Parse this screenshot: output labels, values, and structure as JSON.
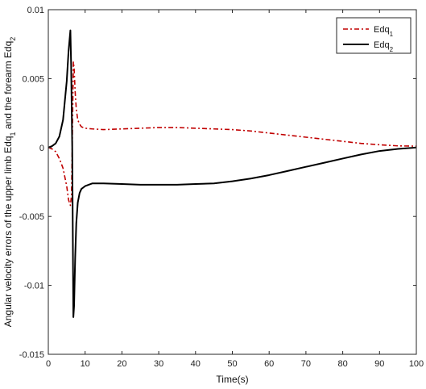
{
  "chart_data": {
    "type": "line",
    "title": "",
    "xlabel": "Time(s)",
    "ylabel_parts": [
      "Angular velocity errors of the upper limb Edq",
      "1",
      " and the forearm Edq",
      "2"
    ],
    "xlim": [
      0,
      100
    ],
    "ylim": [
      -0.015,
      0.01
    ],
    "xticks": [
      0,
      10,
      20,
      30,
      40,
      50,
      60,
      70,
      80,
      90,
      100
    ],
    "yticks": [
      -0.015,
      -0.01,
      -0.005,
      0,
      0.005,
      0.01
    ],
    "ytick_labels": [
      "-0.015",
      "-0.01",
      "-0.005",
      "0",
      "0.005",
      "0.01"
    ],
    "grid": false,
    "legend_position": "top-right",
    "series": [
      {
        "name": "Edq",
        "name_sub": "1",
        "color": "#c00000",
        "style": "dash-dot",
        "x": [
          0,
          1,
          2,
          3,
          4,
          5,
          5.5,
          6,
          6.3,
          6.5,
          6.8,
          7,
          7.3,
          7.6,
          8,
          8.5,
          9,
          10,
          12,
          15,
          20,
          25,
          30,
          35,
          40,
          45,
          50,
          55,
          60,
          65,
          70,
          75,
          80,
          85,
          90,
          95,
          100
        ],
        "y": [
          0,
          -0.0001,
          -0.0003,
          -0.0008,
          -0.0015,
          -0.0028,
          -0.0038,
          -0.0042,
          -0.0035,
          0.0,
          0.0062,
          0.0058,
          0.004,
          0.0028,
          0.002,
          0.0017,
          0.0015,
          0.0014,
          0.00135,
          0.0013,
          0.00135,
          0.0014,
          0.00145,
          0.00145,
          0.0014,
          0.00135,
          0.0013,
          0.0012,
          0.00105,
          0.0009,
          0.00075,
          0.0006,
          0.00045,
          0.0003,
          0.0002,
          0.00012,
          0.0001
        ]
      },
      {
        "name": "Edq",
        "name_sub": "2",
        "color": "#000000",
        "style": "solid",
        "x": [
          0,
          1,
          2,
          3,
          4,
          5,
          5.5,
          6,
          6.2,
          6.5,
          6.8,
          7,
          7.3,
          7.6,
          8,
          8.5,
          9,
          10,
          12,
          15,
          20,
          25,
          30,
          35,
          40,
          45,
          50,
          55,
          60,
          65,
          70,
          75,
          80,
          85,
          90,
          95,
          100
        ],
        "y": [
          0,
          0.0001,
          0.0003,
          0.0008,
          0.002,
          0.0048,
          0.007,
          0.0085,
          0.006,
          0.0,
          -0.0123,
          -0.0115,
          -0.008,
          -0.0055,
          -0.004,
          -0.0033,
          -0.003,
          -0.0028,
          -0.0026,
          -0.0026,
          -0.00265,
          -0.0027,
          -0.0027,
          -0.0027,
          -0.00265,
          -0.0026,
          -0.00245,
          -0.00225,
          -0.002,
          -0.0017,
          -0.0014,
          -0.0011,
          -0.0008,
          -0.0005,
          -0.00025,
          -0.0001,
          0.0
        ]
      }
    ]
  }
}
